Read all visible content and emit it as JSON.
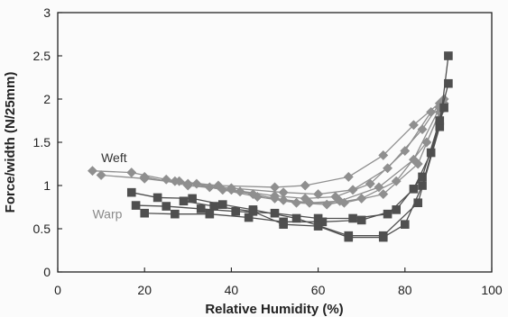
{
  "chart_data": {
    "type": "line",
    "title": "",
    "xlabel": "Relative Humidity (%)",
    "ylabel": "Force/width (N/25mm)",
    "xlim": [
      0,
      100
    ],
    "ylim": [
      0,
      3
    ],
    "xticks": [
      0,
      20,
      40,
      60,
      80,
      100
    ],
    "yticks": [
      0,
      0.5,
      1,
      1.5,
      2,
      2.5,
      3
    ],
    "x_tick_labels": [
      "0",
      "20",
      "40",
      "60",
      "80",
      "100"
    ],
    "y_tick_labels": [
      "0",
      "0.5",
      "1",
      "1.5",
      "2",
      "2.5",
      "3"
    ],
    "grid": false,
    "legend": "none",
    "annotations": [
      {
        "text": "Weft",
        "x": 10,
        "y": 1.27,
        "color": "#333333"
      },
      {
        "text": "Warp",
        "x": 8,
        "y": 0.62,
        "color": "#8a8a8a"
      }
    ],
    "colors": {
      "weft": "#8f8f8f",
      "warp": "#4f4f4f",
      "axis": "#222222"
    },
    "series": [
      {
        "marker": "diamond",
        "color": "#8f8f8f",
        "points": [
          [
            8,
            1.17
          ],
          [
            17,
            1.15
          ],
          [
            27,
            1.05
          ],
          [
            37,
            1.0
          ],
          [
            50,
            0.98
          ],
          [
            57,
            1.0
          ],
          [
            67,
            1.1
          ],
          [
            75,
            1.35
          ],
          [
            82,
            1.7
          ],
          [
            89,
            2.0
          ]
        ]
      },
      {
        "marker": "diamond",
        "color": "#8f8f8f",
        "points": [
          [
            10,
            1.12
          ],
          [
            20,
            1.08
          ],
          [
            30,
            1.02
          ],
          [
            40,
            0.97
          ],
          [
            52,
            0.92
          ],
          [
            60,
            0.9
          ],
          [
            68,
            0.95
          ],
          [
            76,
            1.2
          ],
          [
            84,
            1.65
          ],
          [
            88,
            1.95
          ]
        ]
      },
      {
        "marker": "diamond",
        "color": "#8f8f8f",
        "points": [
          [
            20,
            1.1
          ],
          [
            30,
            1.0
          ],
          [
            40,
            0.95
          ],
          [
            50,
            0.88
          ],
          [
            57,
            0.85
          ],
          [
            64,
            0.87
          ],
          [
            72,
            1.02
          ],
          [
            80,
            1.4
          ],
          [
            86,
            1.85
          ]
        ]
      },
      {
        "marker": "diamond",
        "color": "#8f8f8f",
        "points": [
          [
            25,
            1.07
          ],
          [
            35,
            0.98
          ],
          [
            45,
            0.9
          ],
          [
            52,
            0.83
          ],
          [
            58,
            0.8
          ],
          [
            65,
            0.82
          ],
          [
            74,
            0.98
          ],
          [
            82,
            1.3
          ],
          [
            88,
            1.9
          ]
        ]
      },
      {
        "marker": "diamond",
        "color": "#8f8f8f",
        "points": [
          [
            28,
            1.05
          ],
          [
            38,
            0.95
          ],
          [
            46,
            0.87
          ],
          [
            55,
            0.8
          ],
          [
            62,
            0.78
          ],
          [
            70,
            0.85
          ],
          [
            78,
            1.05
          ],
          [
            85,
            1.5
          ],
          [
            89,
            1.95
          ]
        ]
      },
      {
        "marker": "diamond",
        "color": "#8f8f8f",
        "points": [
          [
            32,
            1.02
          ],
          [
            42,
            0.93
          ],
          [
            50,
            0.85
          ],
          [
            58,
            0.8
          ],
          [
            66,
            0.8
          ],
          [
            75,
            0.9
          ],
          [
            83,
            1.25
          ],
          [
            88,
            1.85
          ]
        ]
      },
      {
        "marker": "square",
        "color": "#4f4f4f",
        "points": [
          [
            17,
            0.92
          ],
          [
            23,
            0.86
          ],
          [
            31,
            0.85
          ],
          [
            38,
            0.78
          ],
          [
            45,
            0.72
          ],
          [
            55,
            0.62
          ],
          [
            67,
            0.42
          ],
          [
            75,
            0.42
          ],
          [
            83,
            0.8
          ],
          [
            88,
            1.68
          ],
          [
            90,
            2.5
          ]
        ]
      },
      {
        "marker": "square",
        "color": "#4f4f4f",
        "points": [
          [
            18,
            0.77
          ],
          [
            25,
            0.76
          ],
          [
            33,
            0.73
          ],
          [
            41,
            0.7
          ],
          [
            50,
            0.68
          ],
          [
            60,
            0.62
          ],
          [
            68,
            0.62
          ],
          [
            76,
            0.67
          ],
          [
            82,
            0.96
          ],
          [
            86,
            1.38
          ],
          [
            90,
            2.18
          ]
        ]
      },
      {
        "marker": "square",
        "color": "#4f4f4f",
        "points": [
          [
            20,
            0.68
          ],
          [
            27,
            0.67
          ],
          [
            35,
            0.67
          ],
          [
            44,
            0.63
          ],
          [
            52,
            0.58
          ],
          [
            61,
            0.58
          ],
          [
            70,
            0.6
          ],
          [
            78,
            0.72
          ],
          [
            84,
            1.1
          ],
          [
            88,
            1.75
          ]
        ]
      },
      {
        "marker": "square",
        "color": "#4f4f4f",
        "points": [
          [
            29,
            0.82
          ],
          [
            36,
            0.76
          ],
          [
            45,
            0.7
          ],
          [
            52,
            0.55
          ],
          [
            60,
            0.53
          ],
          [
            67,
            0.4
          ],
          [
            75,
            0.4
          ],
          [
            80,
            0.55
          ],
          [
            84,
            1.0
          ],
          [
            89,
            1.9
          ]
        ]
      }
    ]
  }
}
